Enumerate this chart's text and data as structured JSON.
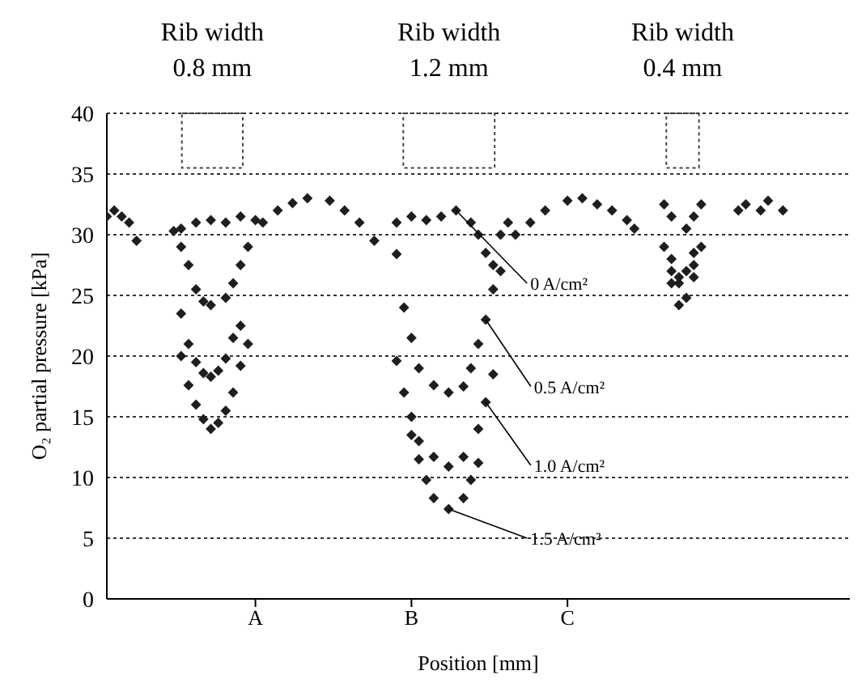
{
  "chart_data": {
    "type": "scatter",
    "xlabel": "Position [mm]",
    "ylabel": "O₂ partial pressure [kPa]",
    "annotations": [
      "Rib width\n0.8 mm",
      "Rib width\n1.2 mm",
      "Rib width\n0.4 mm"
    ],
    "categories": [
      null,
      null,
      null,
      null,
      null,
      null,
      null,
      null,
      null,
      null,
      null,
      null,
      null,
      null,
      null,
      null,
      null,
      null,
      null,
      null,
      "A",
      null,
      null,
      null,
      null,
      null,
      null,
      null,
      null,
      null,
      null,
      null,
      null,
      null,
      null,
      null,
      null,
      null,
      null,
      null,
      null,
      "B",
      null,
      null,
      null,
      null,
      null,
      null,
      null,
      null,
      null,
      null,
      null,
      null,
      null,
      null,
      null,
      null,
      null,
      null,
      null,
      null,
      "C",
      null,
      null,
      null,
      null,
      null,
      null,
      null,
      null,
      null,
      null,
      null,
      null,
      null,
      null,
      null,
      null,
      null,
      null,
      null,
      null,
      null,
      null,
      null,
      null,
      null,
      null,
      null,
      null,
      null,
      null,
      null,
      null,
      null,
      null,
      null,
      null,
      null,
      null
    ],
    "ylim": [
      0,
      40
    ],
    "yticks": [
      0,
      5,
      10,
      15,
      20,
      25,
      30,
      35,
      40
    ],
    "grid": "y",
    "marker": "diamond",
    "series": [
      {
        "name": "0 A/cm²",
        "color": "#1e1e1e",
        "values": [
          31.5,
          32,
          31.5,
          31,
          29.5,
          null,
          null,
          null,
          null,
          30.3,
          30.5,
          null,
          31,
          null,
          31.2,
          null,
          31,
          null,
          31.5,
          null,
          31.2,
          31,
          null,
          32,
          null,
          32.6,
          null,
          33,
          null,
          null,
          32.8,
          null,
          32,
          null,
          31,
          null,
          29.5,
          null,
          null,
          31,
          null,
          31.5,
          null,
          31.2,
          null,
          31.5,
          null,
          32,
          null,
          31,
          30,
          28.5,
          27.5,
          30,
          31,
          30,
          null,
          31,
          null,
          32,
          null,
          null,
          32.8,
          null,
          33,
          null,
          32.5,
          null,
          32,
          null,
          31.2,
          30.5,
          null,
          null,
          null,
          32.5,
          31.5,
          null,
          30.5,
          31.5,
          32.5,
          null,
          null,
          null,
          null,
          32,
          32.5,
          null,
          32,
          32.8,
          null,
          32,
          null,
          null,
          null,
          null,
          null,
          null,
          null,
          null,
          null
        ]
      },
      {
        "name": "0.5 A/cm²",
        "color": "#1e1e1e",
        "values": [
          null,
          null,
          null,
          null,
          null,
          null,
          null,
          null,
          null,
          null,
          29,
          27.5,
          25.5,
          24.5,
          24.2,
          null,
          24.8,
          26,
          27.5,
          29,
          null,
          null,
          null,
          null,
          null,
          null,
          null,
          null,
          null,
          null,
          null,
          null,
          null,
          null,
          null,
          null,
          null,
          null,
          null,
          28.4,
          24,
          21.5,
          19,
          null,
          17.6,
          null,
          17,
          null,
          17.5,
          19,
          21,
          23,
          25.5,
          27,
          null,
          null,
          null,
          null,
          null,
          null,
          null,
          null,
          null,
          null,
          null,
          null,
          null,
          null,
          null,
          null,
          null,
          null,
          null,
          null,
          null,
          29,
          27,
          26,
          null,
          27.5,
          29,
          null,
          null,
          null,
          null,
          null,
          null,
          null,
          null,
          null,
          null,
          null,
          null,
          null,
          null,
          null,
          null,
          null,
          null,
          null,
          null
        ]
      },
      {
        "name": "1.0 A/cm²",
        "color": "#1e1e1e",
        "values": [
          null,
          null,
          null,
          null,
          null,
          null,
          null,
          null,
          null,
          null,
          23.5,
          21,
          19.5,
          18.6,
          18.3,
          18.8,
          19.8,
          21.5,
          22.5,
          null,
          null,
          null,
          null,
          null,
          null,
          null,
          null,
          null,
          null,
          null,
          null,
          null,
          null,
          null,
          null,
          null,
          null,
          null,
          null,
          19.6,
          17,
          15,
          13,
          null,
          11.7,
          null,
          10.9,
          null,
          11.7,
          null,
          14,
          16.2,
          18.5,
          null,
          null,
          null,
          null,
          null,
          null,
          null,
          null,
          null,
          null,
          null,
          null,
          null,
          null,
          null,
          null,
          null,
          null,
          null,
          null,
          null,
          null,
          null,
          28,
          26.5,
          27,
          28.5,
          null,
          null,
          null,
          null,
          null,
          null,
          null,
          null,
          null,
          null,
          null,
          null,
          null,
          null,
          null,
          null,
          null,
          null,
          null,
          null,
          null
        ]
      },
      {
        "name": "1.5 A/cm²",
        "color": "#1e1e1e",
        "values": [
          null,
          null,
          null,
          null,
          null,
          null,
          null,
          null,
          null,
          null,
          20,
          17.6,
          16,
          14.8,
          14,
          14.5,
          15.5,
          17,
          19.2,
          21,
          null,
          null,
          null,
          null,
          null,
          null,
          null,
          null,
          null,
          null,
          null,
          null,
          null,
          null,
          null,
          null,
          null,
          null,
          null,
          null,
          null,
          13.5,
          11.5,
          9.8,
          8.3,
          null,
          7.4,
          null,
          8.3,
          9.8,
          11.2,
          null,
          null,
          null,
          null,
          null,
          null,
          null,
          null,
          null,
          null,
          null,
          null,
          null,
          null,
          null,
          null,
          null,
          null,
          null,
          null,
          null,
          null,
          null,
          null,
          null,
          26,
          24.2,
          24.8,
          26.5,
          null,
          null,
          null,
          null,
          null,
          null,
          null,
          null,
          null,
          null,
          null,
          null,
          null,
          null,
          null,
          null,
          null,
          null,
          null,
          null,
          null
        ]
      }
    ]
  }
}
